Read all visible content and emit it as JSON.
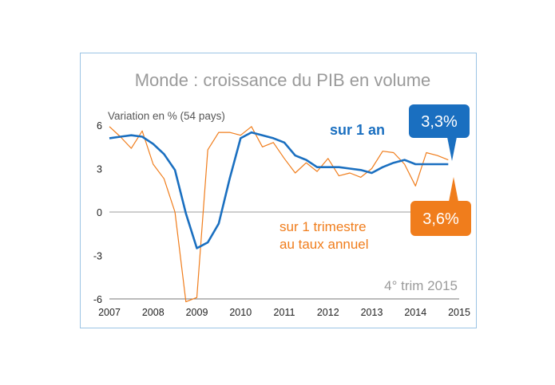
{
  "chart_data": {
    "type": "line",
    "title": "Monde : croissance du PIB en volume",
    "ylabel": "Variation en % (54 pays)",
    "ylim": [
      -6,
      6
    ],
    "yticks": [
      "6",
      "3",
      "0",
      "-3",
      "-6"
    ],
    "xlim": [
      2007,
      2015
    ],
    "xticks": [
      "2007",
      "2008",
      "2009",
      "2010",
      "2011",
      "2012",
      "2013",
      "2014",
      "2015"
    ],
    "grid": "horizontal zero line",
    "series": [
      {
        "name": "sur 1 an",
        "color": "#1a6fc0",
        "label_value": "3,3%",
        "x": [
          2007.0,
          2007.25,
          2007.5,
          2007.75,
          2008.0,
          2008.25,
          2008.5,
          2008.75,
          2009.0,
          2009.25,
          2009.5,
          2009.75,
          2010.0,
          2010.25,
          2010.5,
          2010.75,
          2011.0,
          2011.25,
          2011.5,
          2011.75,
          2012.0,
          2012.25,
          2012.5,
          2012.75,
          2013.0,
          2013.25,
          2013.5,
          2013.75,
          2014.0,
          2014.25,
          2014.5,
          2014.75
        ],
        "values": [
          5.1,
          5.2,
          5.3,
          5.2,
          4.7,
          4.0,
          2.9,
          -0.1,
          -2.5,
          -2.1,
          -0.8,
          2.3,
          5.1,
          5.5,
          5.3,
          5.1,
          4.8,
          3.9,
          3.6,
          3.1,
          3.1,
          3.1,
          3.0,
          2.9,
          2.7,
          3.1,
          3.4,
          3.6,
          3.3,
          3.3,
          3.3,
          3.3
        ]
      },
      {
        "name": "sur 1 trimestre au taux annuel",
        "color": "#f07d1c",
        "label_value": "3,6%",
        "x": [
          2007.0,
          2007.25,
          2007.5,
          2007.75,
          2008.0,
          2008.25,
          2008.5,
          2008.75,
          2009.0,
          2009.25,
          2009.5,
          2009.75,
          2010.0,
          2010.25,
          2010.5,
          2010.75,
          2011.0,
          2011.25,
          2011.5,
          2011.75,
          2012.0,
          2012.25,
          2012.5,
          2012.75,
          2013.0,
          2013.25,
          2013.5,
          2013.75,
          2014.0,
          2014.25,
          2014.5,
          2014.75
        ],
        "values": [
          5.9,
          5.2,
          4.4,
          5.6,
          3.3,
          2.3,
          0.0,
          -6.2,
          -5.9,
          4.3,
          5.5,
          5.5,
          5.3,
          5.9,
          4.5,
          4.8,
          3.7,
          2.7,
          3.4,
          2.8,
          3.7,
          2.5,
          2.7,
          2.4,
          3.0,
          4.2,
          4.1,
          3.3,
          1.8,
          4.1,
          3.9,
          3.6
        ]
      }
    ],
    "annotations": {
      "blue_label": "sur 1 an",
      "orange_label_line1": "sur 1 trimestre",
      "orange_label_line2": "au taux annuel",
      "period": "4° trim 2015"
    }
  }
}
